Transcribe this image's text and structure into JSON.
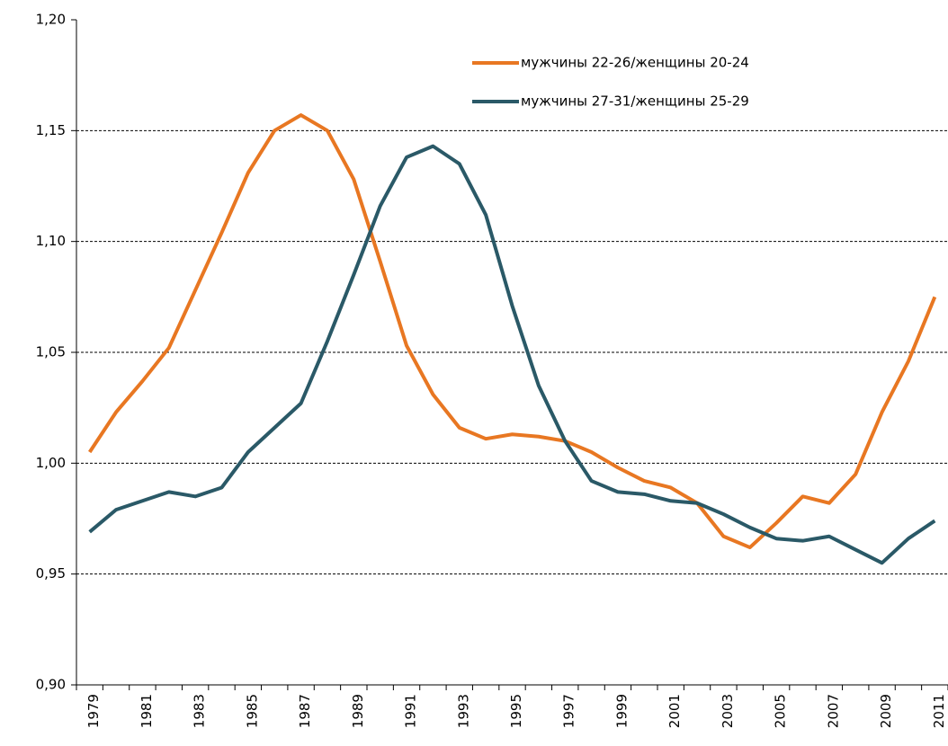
{
  "chart_data": {
    "type": "line",
    "categories": [
      "1979",
      null,
      "1981",
      null,
      "1983",
      null,
      "1985",
      null,
      "1987",
      null,
      "1989",
      null,
      "1991",
      null,
      "1993",
      null,
      "1995",
      null,
      "1997",
      null,
      "1999",
      null,
      "2001",
      null,
      "2003",
      null,
      "2005",
      null,
      "2007",
      null,
      "2009",
      null,
      "2011"
    ],
    "series": [
      {
        "name": "мужчины 22-26/женщины 20-24",
        "color": "#e87722",
        "values": [
          1.005,
          1.023,
          1.037,
          1.052,
          1.078,
          1.104,
          1.131,
          1.15,
          1.157,
          1.15,
          1.128,
          1.091,
          1.053,
          1.031,
          1.016,
          1.011,
          1.013,
          1.012,
          1.01,
          1.005,
          0.998,
          0.992,
          0.989,
          0.982,
          0.967,
          0.962,
          0.973,
          0.985,
          0.982,
          0.995,
          1.023,
          1.046,
          1.075
        ]
      },
      {
        "name": "мужчины 27-31/женщины 25-29",
        "color": "#2a5967",
        "values": [
          0.969,
          0.979,
          0.983,
          0.987,
          0.985,
          0.989,
          1.005,
          1.016,
          1.027,
          1.055,
          1.085,
          1.116,
          1.138,
          1.143,
          1.135,
          1.112,
          1.071,
          1.035,
          1.01,
          0.992,
          0.987,
          0.986,
          0.983,
          0.982,
          0.977,
          0.971,
          0.966,
          0.965,
          0.967,
          0.961,
          0.955,
          0.966,
          0.974
        ]
      }
    ],
    "ylim": [
      0.9,
      1.2
    ],
    "yticks": [
      {
        "value": 0.9,
        "label": "0,90"
      },
      {
        "value": 0.95,
        "label": "0,95"
      },
      {
        "value": 1.0,
        "label": "1,00"
      },
      {
        "value": 1.05,
        "label": "1,05"
      },
      {
        "value": 1.1,
        "label": "1,10"
      },
      {
        "value": 1.15,
        "label": "1,15"
      },
      {
        "value": 1.2,
        "label": "1,20"
      }
    ],
    "grid": true,
    "legend": "top-right"
  }
}
